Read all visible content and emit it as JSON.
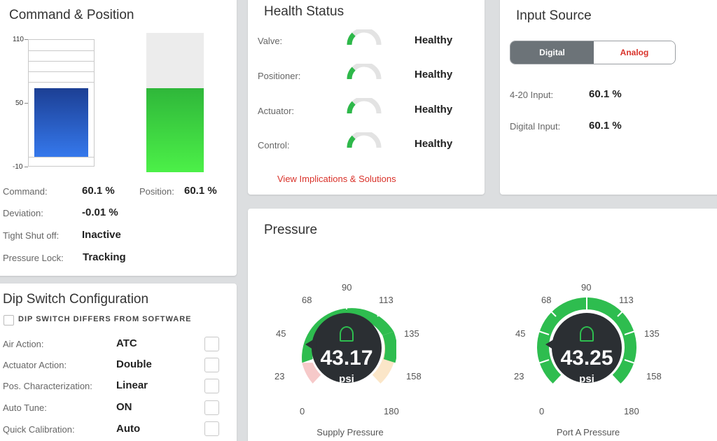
{
  "command_position": {
    "title": "Command & Position",
    "scale": {
      "max": "110",
      "mid": "50",
      "min": "-10"
    },
    "command_label": "Command:",
    "command_value": "60.1 %",
    "position_label": "Position:",
    "position_value": "60.1 %",
    "deviation_label": "Deviation:",
    "deviation_value": "-0.01 %",
    "tight_shutoff_label": "Tight Shut off:",
    "tight_shutoff_value": "Inactive",
    "pressure_lock_label": "Pressure Lock:",
    "pressure_lock_value": "Tracking",
    "command_level": 60.1,
    "position_level": 60.1,
    "colors": {
      "command_bar": "#2f63d8",
      "position_bar": "#46d23a"
    }
  },
  "health_status": {
    "title": "Health Status",
    "items": [
      {
        "label": "Valve:",
        "status": "Healthy"
      },
      {
        "label": "Positioner:",
        "status": "Healthy"
      },
      {
        "label": "Actuator:",
        "status": "Healthy"
      },
      {
        "label": "Control:",
        "status": "Healthy"
      }
    ],
    "link": "View Implications & Solutions",
    "colors": {
      "healthy": "#2eb84a",
      "link": "#d9322a"
    }
  },
  "input_source": {
    "title": "Input Source",
    "toggle": {
      "left": "Digital",
      "right": "Analog",
      "selected": "Digital"
    },
    "input_420_label": "4-20 Input:",
    "input_420_value": "60.1 %",
    "digital_input_label": "Digital Input:",
    "digital_input_value": "60.1 %"
  },
  "dip_switch": {
    "title": "Dip Switch Configuration",
    "differs_label": "DIP SWITCH DIFFERS FROM SOFTWARE",
    "rows": [
      {
        "label": "Air Action:",
        "value": "ATC"
      },
      {
        "label": "Actuator Action:",
        "value": "Double"
      },
      {
        "label": "Pos. Characterization:",
        "value": "Linear"
      },
      {
        "label": "Auto Tune:",
        "value": "ON"
      },
      {
        "label": "Quick Calibration:",
        "value": "Auto"
      }
    ]
  },
  "pressure": {
    "title": "Pressure",
    "unit": "psi",
    "scale_labels": [
      "0",
      "23",
      "45",
      "68",
      "90",
      "113",
      "135",
      "158",
      "180"
    ],
    "gauges": [
      {
        "name": "Supply Pressure",
        "value": "43.17",
        "icon": "regulator-icon"
      },
      {
        "name": "Port A Pressure",
        "value": "43.25",
        "icon": "regulator-icon"
      }
    ],
    "colors": {
      "green": "#2ebd4f",
      "low": "#f6c9c9",
      "high": "#fbe6c8",
      "center": "#2b2f33"
    }
  }
}
